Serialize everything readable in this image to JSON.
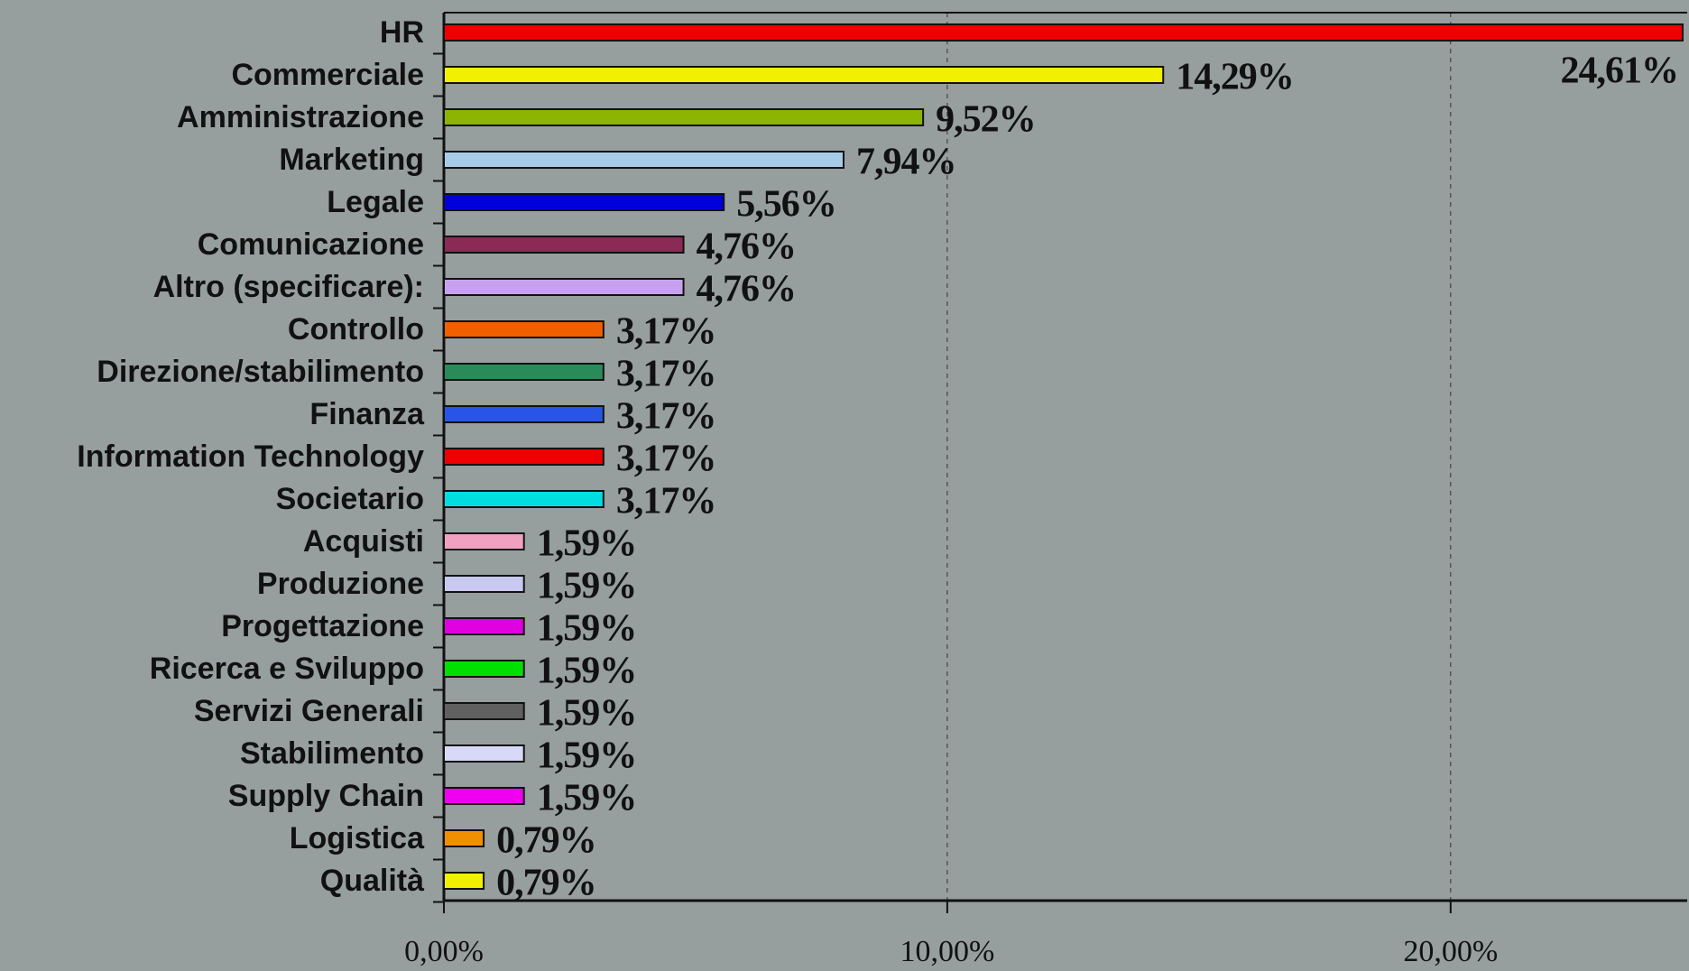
{
  "chart_data": {
    "type": "barh",
    "categories": [
      "HR",
      "Commerciale",
      "Amministrazione",
      "Marketing",
      "Legale",
      "Comunicazione",
      "Altro (specificare):",
      "Controllo",
      "Direzione/stabilimento",
      "Finanza",
      "Information Technology",
      "Societario",
      "Acquisti",
      "Produzione",
      "Progettazione",
      "Ricerca e Sviluppo",
      "Servizi Generali",
      "Stabilimento",
      "Supply Chain",
      "Logistica",
      "Qualità"
    ],
    "values": [
      24.61,
      14.29,
      9.52,
      7.94,
      5.56,
      4.76,
      4.76,
      3.17,
      3.17,
      3.17,
      3.17,
      3.17,
      1.59,
      1.59,
      1.59,
      1.59,
      1.59,
      1.59,
      1.59,
      0.79,
      0.79
    ],
    "value_labels": [
      "24,61%",
      "14,29%",
      "9,52%",
      "7,94%",
      "5,56%",
      "4,76%",
      "4,76%",
      "3,17%",
      "3,17%",
      "3,17%",
      "3,17%",
      "3,17%",
      "1,59%",
      "1,59%",
      "1,59%",
      "1,59%",
      "1,59%",
      "1,59%",
      "1,59%",
      "0,79%",
      "0,79%"
    ],
    "colors": [
      "#ee0000",
      "#f0f000",
      "#8cb400",
      "#a8cce8",
      "#0000dd",
      "#8a2a55",
      "#c8a0f0",
      "#f06000",
      "#2a8a5a",
      "#2855e8",
      "#ee0000",
      "#00dde0",
      "#f0a0c0",
      "#c8c8f0",
      "#e000e0",
      "#00e000",
      "#606060",
      "#d8d8f8",
      "#f000f0",
      "#f09000",
      "#f0f000"
    ],
    "xlim": [
      0,
      24.7
    ],
    "xticks": [
      {
        "value": 0,
        "label": "0,00%"
      },
      {
        "value": 10,
        "label": "10,00%"
      },
      {
        "value": 20,
        "label": "20,00%"
      }
    ],
    "grid": true
  }
}
